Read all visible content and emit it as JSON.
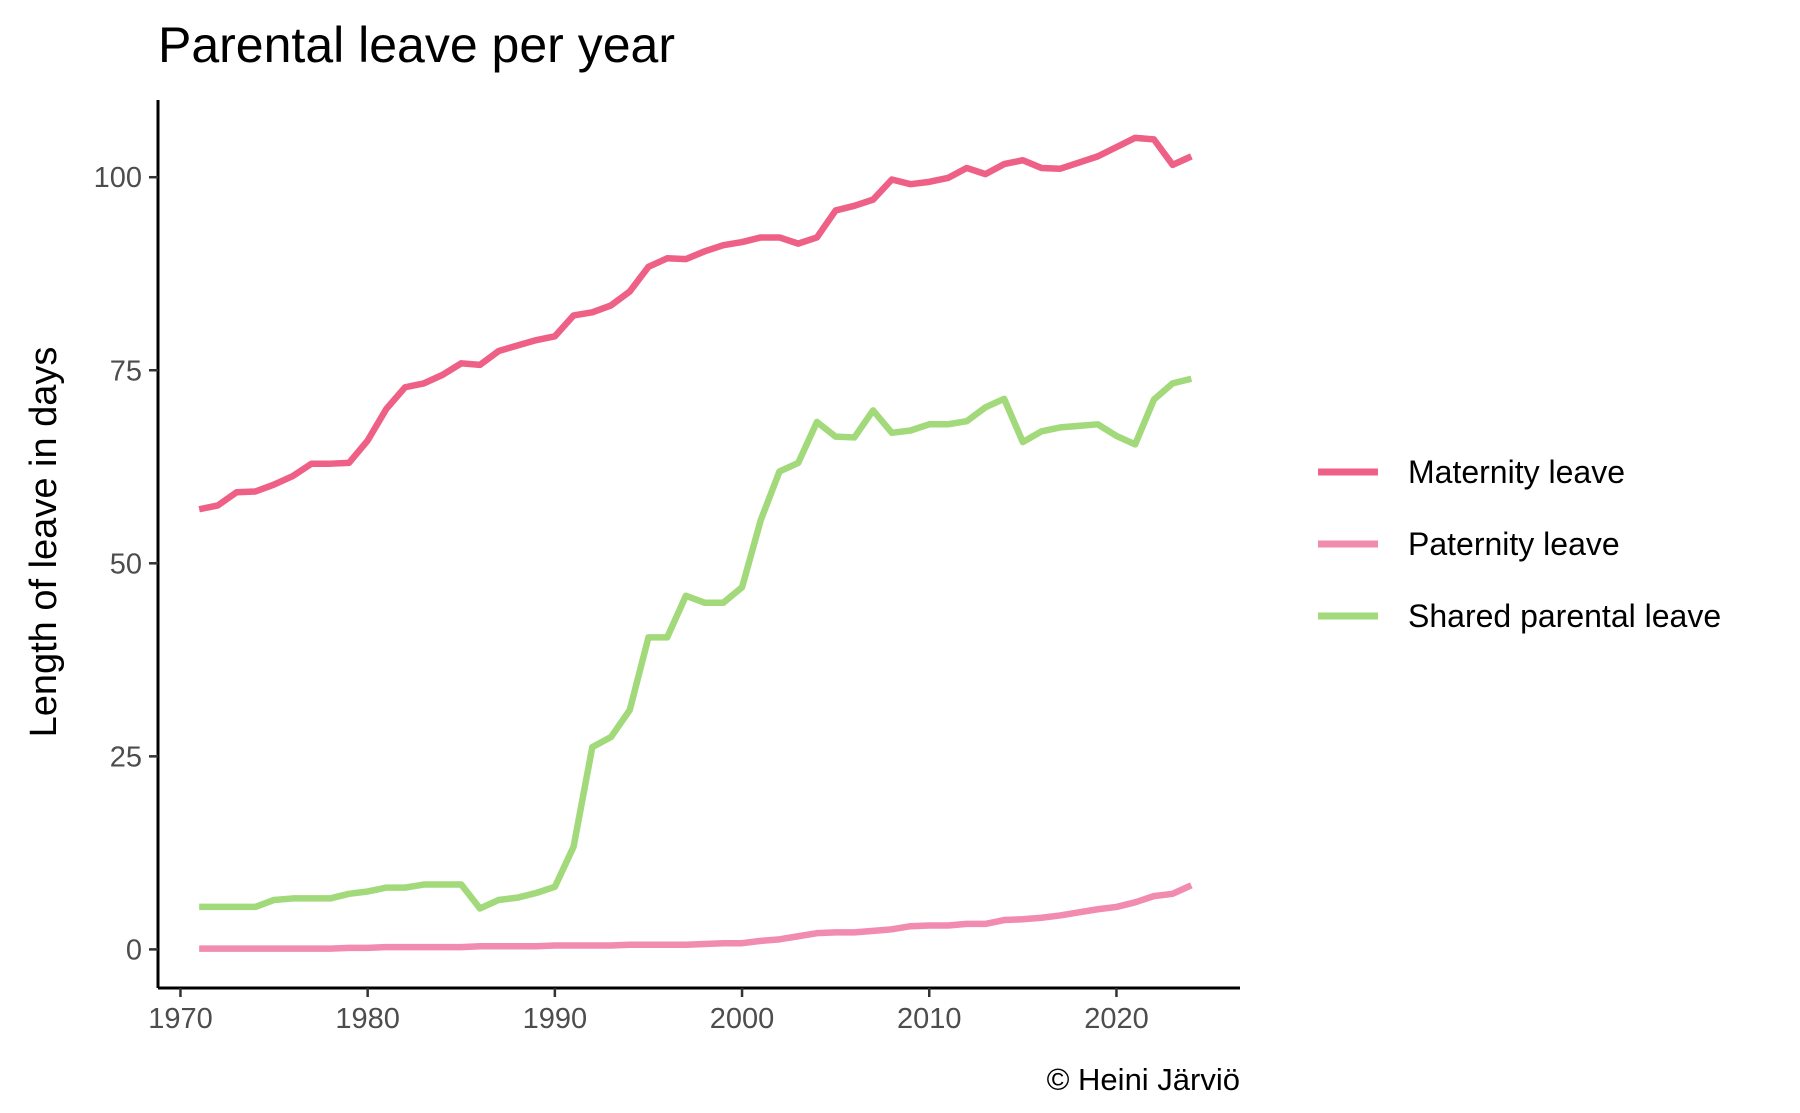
{
  "chart_data": {
    "type": "line",
    "title": "Parental leave per year",
    "xlabel": "",
    "ylabel": "Length of leave in days",
    "caption": "© Heini Järviö",
    "xlim": [
      1968.8,
      2026.6
    ],
    "ylim": [
      -5,
      110
    ],
    "xticks": [
      1970,
      1980,
      1990,
      2000,
      2010,
      2020
    ],
    "yticks": [
      0,
      25,
      50,
      75,
      100
    ],
    "grid": false,
    "legend_position": "right",
    "x": [
      1971,
      1972,
      1973,
      1974,
      1975,
      1976,
      1977,
      1978,
      1979,
      1980,
      1981,
      1982,
      1983,
      1984,
      1985,
      1986,
      1987,
      1988,
      1989,
      1990,
      1991,
      1992,
      1993,
      1994,
      1995,
      1996,
      1997,
      1998,
      1999,
      2000,
      2001,
      2002,
      2003,
      2004,
      2005,
      2006,
      2007,
      2008,
      2009,
      2010,
      2011,
      2012,
      2013,
      2014,
      2015,
      2016,
      2017,
      2018,
      2019,
      2020,
      2021,
      2022,
      2023,
      2024
    ],
    "series": [
      {
        "name": "Maternity leave",
        "color": "#EE6085",
        "values": [
          57,
          57.5,
          59.2,
          59.3,
          60.2,
          61.3,
          62.9,
          62.9,
          63,
          65.9,
          70,
          72.8,
          73.3,
          74.4,
          75.9,
          75.7,
          77.5,
          78.2,
          78.9,
          79.4,
          82.1,
          82.5,
          83.4,
          85.2,
          88.4,
          89.5,
          89.4,
          90.4,
          91.2,
          91.6,
          92.2,
          92.2,
          91.4,
          92.2,
          95.7,
          96.3,
          97.1,
          99.7,
          99.1,
          99.4,
          99.9,
          101.2,
          100.4,
          101.7,
          102.2,
          101.2,
          101.1,
          101.9,
          102.7,
          103.9,
          105.1,
          104.9,
          101.6,
          102.7
        ]
      },
      {
        "name": "Paternity leave",
        "color": "#F28BB0",
        "values": [
          0.1,
          0.1,
          0.1,
          0.1,
          0.1,
          0.1,
          0.1,
          0.1,
          0.2,
          0.2,
          0.3,
          0.3,
          0.3,
          0.3,
          0.3,
          0.4,
          0.4,
          0.4,
          0.4,
          0.5,
          0.5,
          0.5,
          0.5,
          0.6,
          0.6,
          0.6,
          0.6,
          0.7,
          0.8,
          0.8,
          1.1,
          1.3,
          1.7,
          2.1,
          2.2,
          2.2,
          2.4,
          2.6,
          3,
          3.1,
          3.1,
          3.3,
          3.3,
          3.8,
          3.9,
          4.1,
          4.4,
          4.8,
          5.2,
          5.5,
          6.1,
          6.9,
          7.2,
          8.3
        ]
      },
      {
        "name": "Shared parental leave",
        "color": "#A2D97A",
        "values": [
          5.5,
          5.5,
          5.5,
          5.5,
          6.4,
          6.6,
          6.6,
          6.6,
          7.2,
          7.5,
          8,
          8,
          8.4,
          8.4,
          8.4,
          5.3,
          6.4,
          6.7,
          7.3,
          8.1,
          13.3,
          26.2,
          27.5,
          31,
          40.4,
          40.4,
          45.8,
          44.9,
          44.9,
          46.9,
          55.6,
          61.9,
          63,
          68.3,
          66.4,
          66.3,
          69.8,
          66.9,
          67.2,
          68,
          68,
          68.4,
          70.2,
          71.3,
          65.7,
          67.1,
          67.6,
          67.8,
          68,
          66.5,
          65.4,
          71.2,
          73.3,
          73.9
        ]
      }
    ]
  }
}
